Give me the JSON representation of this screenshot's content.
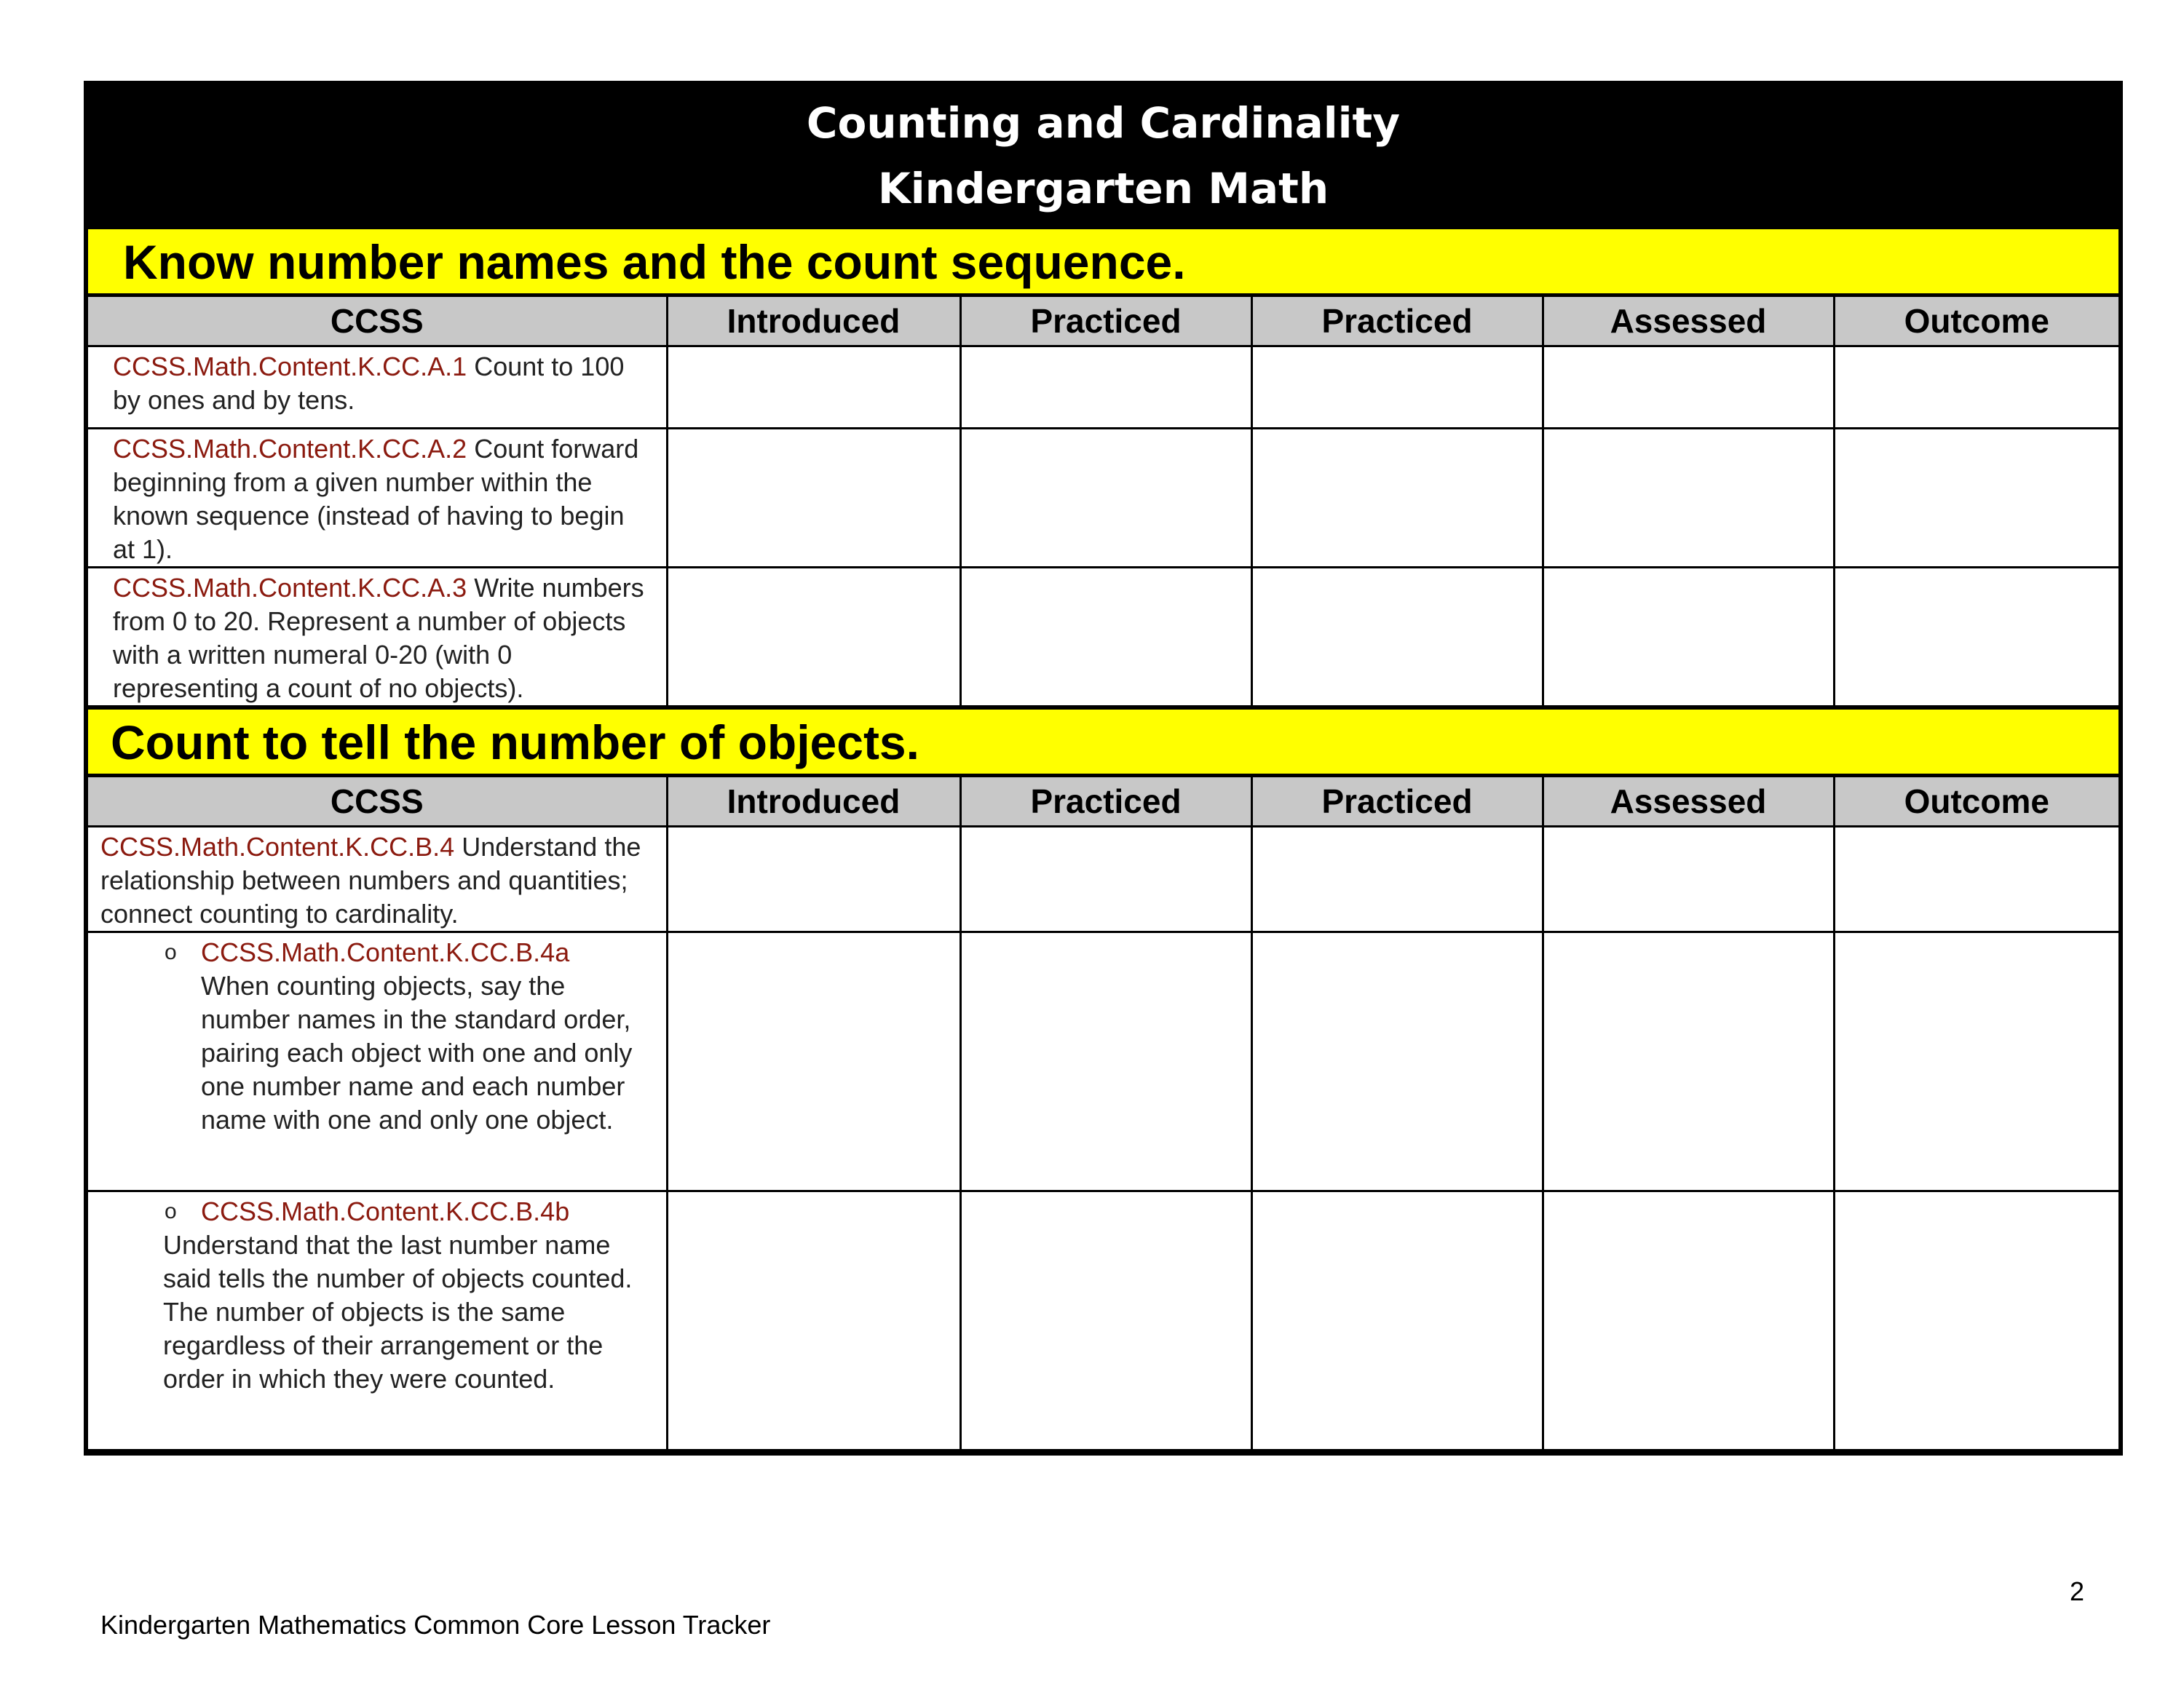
{
  "header": {
    "title_line1": "Counting and Cardinality",
    "title_line2": "Kindergarten Math"
  },
  "columns": [
    "CCSS",
    "Introduced",
    "Practiced",
    "Practiced",
    "Assessed",
    "Outcome"
  ],
  "sections": [
    {
      "heading": "Know number names and the count sequence.",
      "rows": [
        {
          "code": "CCSS.Math.Content.K.CC.A.1",
          "text": " Count to 100 by ones and by tens."
        },
        {
          "code": "CCSS.Math.Content.K.CC.A.2",
          "text": " Count forward beginning from a given number within the known sequence (instead of having to begin at 1)."
        },
        {
          "code": "CCSS.Math.Content.K.CC.A.3",
          "text": " Write numbers from 0 to 20. Represent a number of objects with a written numeral 0-20 (with 0 representing a count of no objects)."
        }
      ]
    },
    {
      "heading": "Count to tell the number of objects.",
      "rows": [
        {
          "code": "CCSS.Math.Content.K.CC.B.4",
          "text": " Understand the relationship between numbers and quantities; connect counting to cardinality."
        },
        {
          "bullet": "o",
          "code": "CCSS.Math.Content.K.CC.B.4a",
          "text": "When counting objects, say the number names in the standard order, pairing each object with one and only one number name and each number name with one and only one object."
        },
        {
          "bullet": "o",
          "code": "CCSS.Math.Content.K.CC.B.4b",
          "text": "Understand that the last number name said tells the number of objects counted. The number of objects is the same regardless of their arrangement or the order in which they were counted."
        }
      ]
    }
  ],
  "footer": {
    "text": "Kindergarten Mathematics Common Core Lesson Tracker",
    "page_number": "2"
  },
  "colors": {
    "title_bg": "#000000",
    "section_bg": "#ffff00",
    "header_bg": "#c8c8c8",
    "code_text": "#8b1a0f"
  }
}
